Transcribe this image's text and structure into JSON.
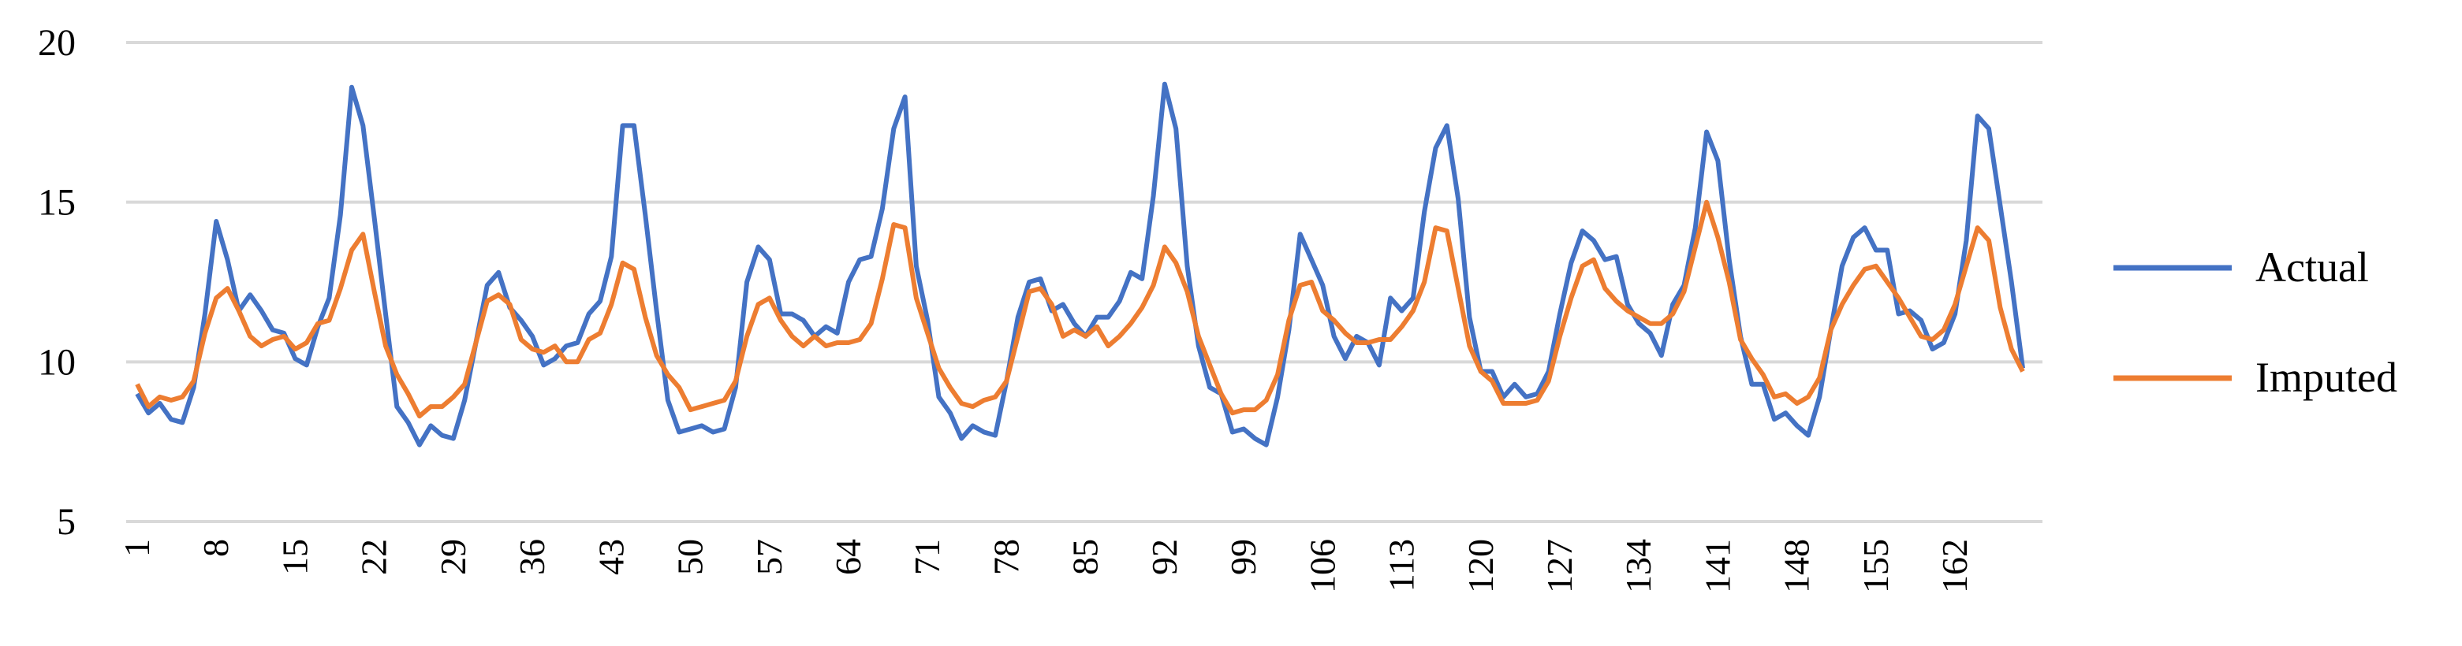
{
  "chart_data": {
    "type": "line",
    "categories": [
      "1",
      null,
      null,
      null,
      null,
      null,
      null,
      "8",
      null,
      null,
      null,
      null,
      null,
      null,
      "15",
      null,
      null,
      null,
      null,
      null,
      null,
      "22",
      null,
      null,
      null,
      null,
      null,
      null,
      "29",
      null,
      null,
      null,
      null,
      null,
      null,
      "36",
      null,
      null,
      null,
      null,
      null,
      null,
      "43",
      null,
      null,
      null,
      null,
      null,
      null,
      "50",
      null,
      null,
      null,
      null,
      null,
      null,
      "57",
      null,
      null,
      null,
      null,
      null,
      null,
      "64",
      null,
      null,
      null,
      null,
      null,
      null,
      "71",
      null,
      null,
      null,
      null,
      null,
      null,
      "78",
      null,
      null,
      null,
      null,
      null,
      null,
      "85",
      null,
      null,
      null,
      null,
      null,
      null,
      "92",
      null,
      null,
      null,
      null,
      null,
      null,
      "99",
      null,
      null,
      null,
      null,
      null,
      null,
      "106",
      null,
      null,
      null,
      null,
      null,
      null,
      "113",
      null,
      null,
      null,
      null,
      null,
      null,
      "120",
      null,
      null,
      null,
      null,
      null,
      null,
      "127",
      null,
      null,
      null,
      null,
      null,
      null,
      "134",
      null,
      null,
      null,
      null,
      null,
      null,
      "141",
      null,
      null,
      null,
      null,
      null,
      null,
      "148",
      null,
      null,
      null,
      null,
      null,
      null,
      "155",
      null,
      null,
      null,
      null,
      null,
      null,
      "162",
      null,
      null,
      null,
      null,
      null,
      null
    ],
    "series": [
      {
        "name": "Actual",
        "color": "#4472c4",
        "values": [
          9.0,
          8.4,
          8.7,
          8.2,
          8.1,
          9.2,
          11.5,
          14.4,
          13.2,
          11.6,
          12.1,
          11.6,
          11.0,
          10.9,
          10.1,
          9.9,
          11.1,
          12.0,
          14.6,
          18.6,
          17.4,
          14.5,
          11.5,
          8.6,
          8.1,
          7.4,
          8.0,
          7.7,
          7.6,
          8.8,
          10.6,
          12.4,
          12.8,
          11.7,
          11.3,
          10.8,
          9.9,
          10.1,
          10.5,
          10.6,
          11.5,
          11.9,
          13.3,
          17.4,
          17.4,
          14.6,
          11.6,
          8.8,
          7.8,
          7.9,
          8.0,
          7.8,
          7.9,
          9.2,
          12.5,
          13.6,
          13.2,
          11.5,
          11.5,
          11.3,
          10.8,
          11.1,
          10.9,
          12.5,
          13.2,
          13.3,
          14.8,
          17.3,
          18.3,
          13.0,
          11.3,
          8.9,
          8.4,
          7.6,
          8.0,
          7.8,
          7.7,
          9.4,
          11.4,
          12.5,
          12.6,
          11.6,
          11.8,
          11.2,
          10.8,
          11.4,
          11.4,
          11.9,
          12.8,
          12.6,
          15.2,
          18.7,
          17.3,
          13.0,
          10.5,
          9.2,
          9.0,
          7.8,
          7.9,
          7.6,
          7.4,
          8.9,
          11.0,
          14.0,
          13.2,
          12.4,
          10.8,
          10.1,
          10.8,
          10.6,
          9.9,
          12.0,
          11.6,
          12.0,
          14.7,
          16.7,
          17.4,
          15.1,
          11.4,
          9.7,
          9.7,
          8.9,
          9.3,
          8.9,
          9.0,
          9.7,
          11.5,
          13.1,
          14.1,
          13.8,
          13.2,
          13.3,
          11.8,
          11.2,
          10.9,
          10.2,
          11.8,
          12.4,
          14.2,
          17.2,
          16.3,
          13.2,
          10.8,
          9.3,
          9.3,
          8.2,
          8.4,
          8.0,
          7.7,
          8.9,
          11.0,
          13.0,
          13.9,
          14.2,
          13.5,
          13.5,
          11.5,
          11.6,
          11.3,
          10.4,
          10.6,
          11.5,
          13.8,
          17.7,
          17.3,
          14.9,
          12.5,
          9.8
        ]
      },
      {
        "name": "Imputed",
        "color": "#ed7d31",
        "values": [
          9.3,
          8.6,
          8.9,
          8.8,
          8.9,
          9.4,
          10.9,
          12.0,
          12.3,
          11.6,
          10.8,
          10.5,
          10.7,
          10.8,
          10.4,
          10.6,
          11.2,
          11.3,
          12.3,
          13.5,
          14.0,
          12.2,
          10.5,
          9.6,
          9.0,
          8.3,
          8.6,
          8.6,
          8.9,
          9.3,
          10.6,
          11.9,
          12.1,
          11.8,
          10.7,
          10.4,
          10.3,
          10.5,
          10.0,
          10.0,
          10.7,
          10.9,
          11.8,
          13.1,
          12.9,
          11.4,
          10.2,
          9.6,
          9.2,
          8.5,
          8.6,
          8.7,
          8.8,
          9.4,
          10.8,
          11.8,
          12.0,
          11.3,
          10.8,
          10.5,
          10.8,
          10.5,
          10.6,
          10.6,
          10.7,
          11.2,
          12.6,
          14.3,
          14.2,
          12.0,
          10.9,
          9.8,
          9.2,
          8.7,
          8.6,
          8.8,
          8.9,
          9.4,
          10.8,
          12.2,
          12.3,
          11.8,
          10.8,
          11.0,
          10.8,
          11.1,
          10.5,
          10.8,
          11.2,
          11.7,
          12.4,
          13.6,
          13.1,
          12.2,
          10.8,
          9.9,
          9.0,
          8.4,
          8.5,
          8.5,
          8.8,
          9.6,
          11.3,
          12.4,
          12.5,
          11.6,
          11.3,
          10.9,
          10.6,
          10.6,
          10.7,
          10.7,
          11.1,
          11.6,
          12.5,
          14.2,
          14.1,
          12.3,
          10.5,
          9.7,
          9.4,
          8.7,
          8.7,
          8.7,
          8.8,
          9.4,
          10.8,
          12.0,
          13.0,
          13.2,
          12.3,
          11.9,
          11.6,
          11.4,
          11.2,
          11.2,
          11.5,
          12.2,
          13.6,
          15.0,
          13.9,
          12.5,
          10.7,
          10.1,
          9.6,
          8.9,
          9.0,
          8.7,
          8.9,
          9.5,
          11.0,
          11.8,
          12.4,
          12.9,
          13.0,
          12.5,
          12.0,
          11.4,
          10.8,
          10.7,
          11.0,
          11.8,
          13.0,
          14.2,
          13.8,
          11.7,
          10.4,
          9.7
        ]
      }
    ],
    "ylim": [
      5,
      20
    ],
    "yticks": [
      5,
      10,
      15,
      20
    ],
    "grid": true,
    "legend": "right"
  }
}
